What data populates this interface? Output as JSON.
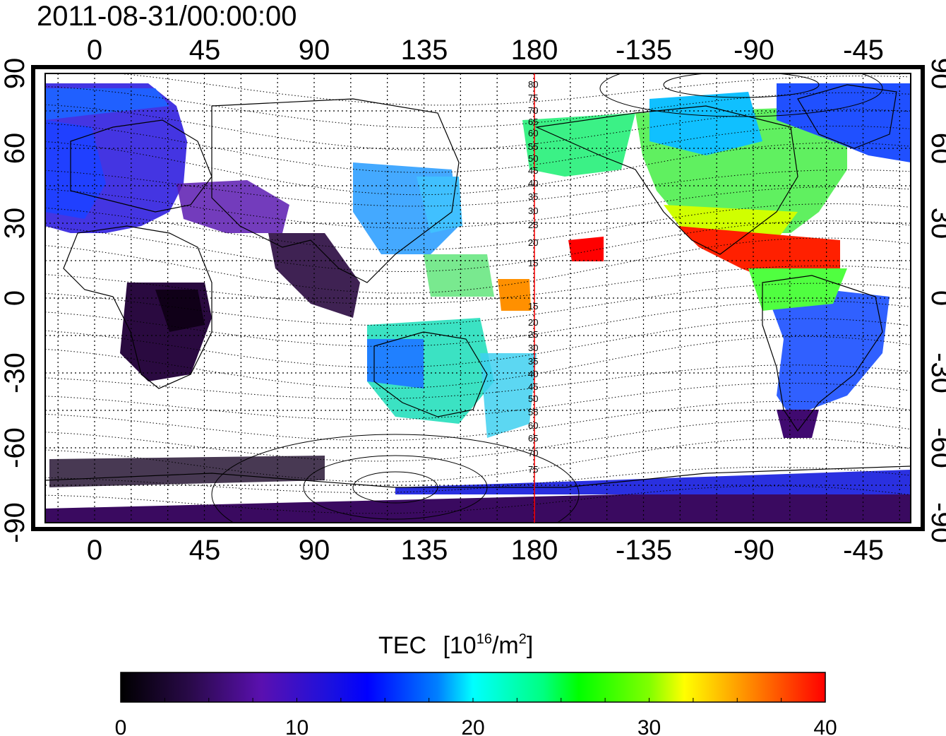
{
  "title": "2011-08-31/00:00:00",
  "map": {
    "lon_ticks_top": [
      "0",
      "45",
      "90",
      "135",
      "180",
      "-135",
      "-90",
      "-45"
    ],
    "lon_ticks_bottom": [
      "0",
      "45",
      "90",
      "135",
      "180",
      "-135",
      "-90",
      "-45"
    ],
    "lat_ticks_left": [
      "90",
      "60",
      "30",
      "0",
      "-30",
      "-60",
      "-90"
    ],
    "lat_ticks_right": [
      "90",
      "60",
      "30",
      "0",
      "-30",
      "-60",
      "-90"
    ],
    "meridian_marker_lon": "180",
    "marker_color": "#ff0000",
    "magnetic_lat_labels": [
      "80",
      "75",
      "70",
      "65",
      "60",
      "55",
      "50",
      "45",
      "40",
      "35",
      "30",
      "25",
      "20",
      "15",
      "15",
      "20",
      "25",
      "30",
      "35",
      "40",
      "45",
      "50",
      "55",
      "60",
      "65",
      "70",
      "75"
    ]
  },
  "colorbar": {
    "title": "TEC [10¹⁶/m²]",
    "title_main": "TEC",
    "title_unit_prefix": "[10",
    "title_unit_sup": "16",
    "title_unit_mid": "/m",
    "title_unit_sup2": "2",
    "title_unit_suffix": "]",
    "min": 0,
    "max": 40,
    "ticks": [
      "0",
      "10",
      "20",
      "30",
      "40"
    ],
    "colors": [
      "#000000",
      "#2a0a4a",
      "#5a10b0",
      "#0000ff",
      "#0080ff",
      "#00ffff",
      "#00ff80",
      "#00ff00",
      "#80ff00",
      "#ffff00",
      "#ff8000",
      "#ff0000"
    ]
  }
}
